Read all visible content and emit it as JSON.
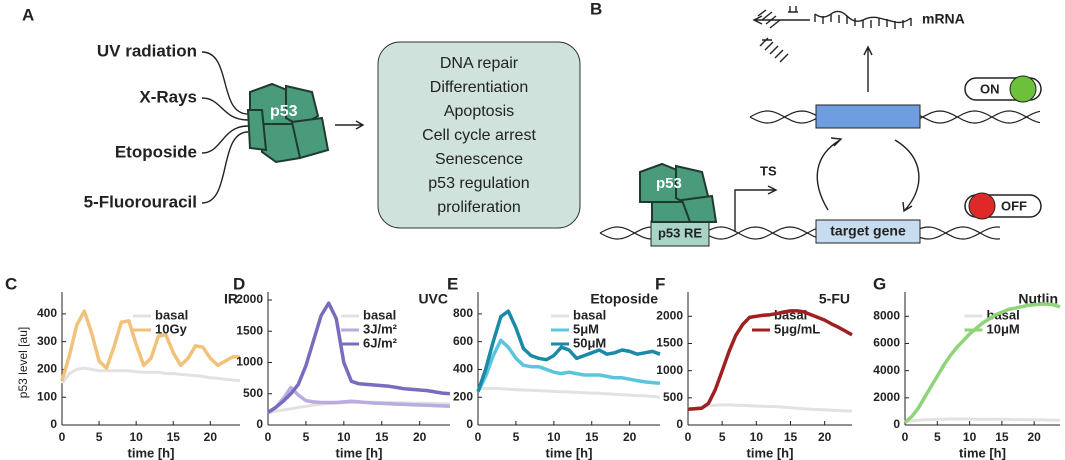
{
  "panel_a": {
    "label": "A",
    "stimuli": [
      "UV radiation",
      "X-Rays",
      "Etoposide",
      "5-Fluorouracil"
    ],
    "protein": "p53",
    "outcomes": [
      "DNA repair",
      "Differentiation",
      "Apoptosis",
      "Cell cycle arrest",
      "Senescence",
      "p53 regulation",
      "proliferation"
    ]
  },
  "panel_b": {
    "label": "B",
    "mrna": "mRNA",
    "on": "ON",
    "off": "OFF",
    "ts": "TS",
    "protein": "p53",
    "response_element": "p53 RE",
    "target": "target gene"
  },
  "chart_data": [
    {
      "type": "line",
      "label": "C",
      "title": "IR",
      "ylabel": "p53 level [au]",
      "xlabel": "time [h]",
      "x": [
        0,
        1,
        2,
        3,
        4,
        5,
        6,
        7,
        8,
        9,
        10,
        11,
        12,
        13,
        14,
        15,
        16,
        17,
        18,
        19,
        20,
        21,
        22,
        23,
        24
      ],
      "xlim": [
        0,
        24
      ],
      "xticks": [
        0,
        5,
        10,
        15,
        20
      ],
      "ylim": [
        0,
        450
      ],
      "yticks": [
        0,
        100,
        200,
        300,
        400
      ],
      "series": [
        {
          "name": "basal",
          "color": "#e2e2e2",
          "values": [
            150,
            185,
            200,
            205,
            200,
            195,
            195,
            195,
            195,
            195,
            192,
            190,
            190,
            190,
            185,
            185,
            182,
            180,
            178,
            175,
            170,
            168,
            165,
            162,
            160
          ]
        },
        {
          "name": "10Gy",
          "color": "#f2c27b",
          "values": [
            160,
            250,
            360,
            410,
            330,
            230,
            205,
            280,
            370,
            375,
            290,
            215,
            240,
            320,
            325,
            260,
            215,
            240,
            285,
            280,
            240,
            215,
            230,
            245,
            245
          ]
        }
      ]
    },
    {
      "type": "line",
      "label": "D",
      "title": "UVC",
      "xlabel": "time [h]",
      "x": [
        0,
        1,
        2,
        3,
        4,
        5,
        6,
        7,
        8,
        9,
        10,
        11,
        12,
        13,
        14,
        15,
        16,
        17,
        18,
        19,
        20,
        21,
        22,
        23,
        24
      ],
      "xlim": [
        0,
        24
      ],
      "xticks": [
        0,
        5,
        10,
        15,
        20
      ],
      "ylim": [
        0,
        2000
      ],
      "yticks": [
        0,
        500,
        1000,
        1500,
        2000
      ],
      "series": [
        {
          "name": "basal",
          "color": "#e2e2e2",
          "values": [
            200,
            220,
            240,
            260,
            280,
            300,
            320,
            335,
            345,
            350,
            355,
            360,
            365,
            365,
            365,
            360,
            360,
            355,
            355,
            350,
            350,
            345,
            345,
            340,
            340
          ]
        },
        {
          "name": "3J/m²",
          "color": "#b9addf",
          "values": [
            200,
            280,
            420,
            600,
            480,
            390,
            370,
            360,
            360,
            360,
            370,
            380,
            370,
            360,
            350,
            345,
            340,
            335,
            330,
            325,
            320,
            315,
            310,
            305,
            300
          ]
        },
        {
          "name": "6J/m²",
          "color": "#7b6bbf",
          "values": [
            200,
            280,
            380,
            500,
            650,
            950,
            1350,
            1750,
            1950,
            1700,
            1000,
            700,
            660,
            650,
            640,
            630,
            620,
            600,
            580,
            570,
            560,
            550,
            530,
            510,
            500
          ]
        }
      ]
    },
    {
      "type": "line",
      "label": "E",
      "title": "Etoposide",
      "xlabel": "time [h]",
      "x": [
        0,
        1,
        2,
        3,
        4,
        5,
        6,
        7,
        8,
        9,
        10,
        11,
        12,
        13,
        14,
        15,
        16,
        17,
        18,
        19,
        20,
        21,
        22,
        23,
        24
      ],
      "xlim": [
        0,
        24
      ],
      "xticks": [
        0,
        5,
        10,
        15,
        20
      ],
      "ylim": [
        0,
        900
      ],
      "yticks": [
        0,
        200,
        400,
        600,
        800
      ],
      "series": [
        {
          "name": "basal",
          "color": "#e2e2e2",
          "values": [
            260,
            262,
            265,
            262,
            258,
            255,
            252,
            250,
            248,
            245,
            242,
            240,
            238,
            235,
            232,
            230,
            228,
            225,
            222,
            218,
            215,
            212,
            210,
            205,
            200
          ]
        },
        {
          "name": "5μM",
          "color": "#5bc5e0",
          "values": [
            240,
            350,
            500,
            610,
            560,
            480,
            430,
            420,
            420,
            400,
            380,
            370,
            380,
            370,
            360,
            360,
            360,
            350,
            340,
            340,
            330,
            320,
            310,
            305,
            300
          ]
        },
        {
          "name": "50μM",
          "color": "#1a8aa8",
          "values": [
            240,
            400,
            600,
            780,
            820,
            700,
            550,
            500,
            480,
            470,
            500,
            560,
            540,
            480,
            500,
            520,
            540,
            510,
            520,
            540,
            530,
            510,
            520,
            530,
            510
          ]
        }
      ]
    },
    {
      "type": "line",
      "label": "F",
      "title": "5-FU",
      "xlabel": "time [h]",
      "x": [
        0,
        1,
        2,
        3,
        4,
        5,
        6,
        7,
        8,
        9,
        10,
        11,
        12,
        13,
        14,
        15,
        16,
        17,
        18,
        19,
        20,
        21,
        22,
        23,
        24
      ],
      "xlim": [
        0,
        24
      ],
      "xticks": [
        0,
        5,
        10,
        15,
        20
      ],
      "ylim": [
        0,
        2300
      ],
      "yticks": [
        0,
        500,
        1000,
        1500,
        2000
      ],
      "series": [
        {
          "name": "basal",
          "color": "#e2e2e2",
          "values": [
            300,
            310,
            330,
            355,
            365,
            370,
            370,
            365,
            360,
            355,
            350,
            345,
            340,
            335,
            330,
            320,
            310,
            300,
            290,
            285,
            280,
            270,
            265,
            260,
            255
          ]
        },
        {
          "name": "5μg/mL",
          "color": "#a02020",
          "values": [
            290,
            300,
            310,
            400,
            650,
            1000,
            1350,
            1650,
            1850,
            1980,
            2000,
            2020,
            2030,
            2050,
            2080,
            2100,
            2100,
            2080,
            2030,
            1980,
            1930,
            1860,
            1800,
            1730,
            1660
          ]
        }
      ]
    },
    {
      "type": "line",
      "label": "G",
      "title": "Nutlin",
      "xlabel": "time [h]",
      "x": [
        0,
        1,
        2,
        3,
        4,
        5,
        6,
        7,
        8,
        9,
        10,
        11,
        12,
        13,
        14,
        15,
        16,
        17,
        18,
        19,
        20,
        21,
        22,
        23,
        24
      ],
      "xlim": [
        0,
        24
      ],
      "xticks": [
        0,
        5,
        10,
        15,
        20
      ],
      "ylim": [
        0,
        9200
      ],
      "yticks": [
        0,
        2000,
        4000,
        6000,
        8000
      ],
      "series": [
        {
          "name": "basal",
          "color": "#e2e2e2",
          "values": [
            250,
            300,
            350,
            380,
            400,
            420,
            430,
            440,
            440,
            440,
            440,
            430,
            430,
            420,
            420,
            410,
            410,
            400,
            400,
            390,
            390,
            380,
            370,
            360,
            350
          ]
        },
        {
          "name": "10μM",
          "color": "#90d47a",
          "values": [
            200,
            600,
            1200,
            2000,
            2800,
            3600,
            4400,
            5100,
            5700,
            6200,
            6700,
            7100,
            7500,
            7800,
            8100,
            8300,
            8500,
            8600,
            8700,
            8800,
            8850,
            8900,
            8900,
            8850,
            8700
          ]
        }
      ]
    }
  ]
}
